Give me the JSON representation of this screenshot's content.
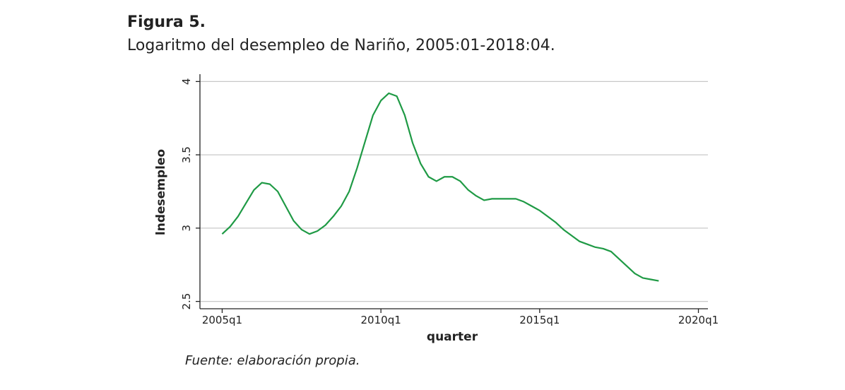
{
  "chart_data": {
    "type": "line",
    "title": "Figura 5.",
    "subtitle": "Logaritmo del desempleo de Nariño, 2005:01-2018:04.",
    "source": "Fuente: elaboración propia.",
    "xlabel": "quarter",
    "ylabel": "lndesempleo",
    "x": [
      2005,
      2005.25,
      2005.5,
      2005.75,
      2006,
      2006.25,
      2006.5,
      2006.75,
      2007,
      2007.25,
      2007.5,
      2007.75,
      2008,
      2008.25,
      2008.5,
      2008.75,
      2009,
      2009.25,
      2009.5,
      2009.75,
      2010,
      2010.25,
      2010.5,
      2010.75,
      2011,
      2011.25,
      2011.5,
      2011.75,
      2012,
      2012.25,
      2012.5,
      2012.75,
      2013,
      2013.25,
      2013.5,
      2013.75,
      2014,
      2014.25,
      2014.5,
      2014.75,
      2015,
      2015.25,
      2015.5,
      2015.75,
      2016,
      2016.25,
      2016.5,
      2016.75,
      2017,
      2017.25,
      2017.5,
      2017.75,
      2018,
      2018.25,
      2018.5,
      2018.75
    ],
    "series": [
      {
        "name": "lndesempleo",
        "color": "#1f9a45",
        "values": [
          2.96,
          3.01,
          3.08,
          3.17,
          3.26,
          3.31,
          3.3,
          3.25,
          3.15,
          3.05,
          2.99,
          2.96,
          2.98,
          3.02,
          3.08,
          3.15,
          3.25,
          3.41,
          3.59,
          3.77,
          3.87,
          3.92,
          3.9,
          3.77,
          3.58,
          3.44,
          3.35,
          3.32,
          3.35,
          3.35,
          3.32,
          3.26,
          3.22,
          3.19,
          3.2,
          3.2,
          3.2,
          3.2,
          3.18,
          3.15,
          3.12,
          3.08,
          3.04,
          2.99,
          2.95,
          2.91,
          2.89,
          2.87,
          2.86,
          2.84,
          2.79,
          2.74,
          2.69,
          2.66,
          2.65,
          2.64
        ]
      }
    ],
    "xlim": [
      2004.3,
      2020.3
    ],
    "xticks": [
      {
        "value": 2005,
        "label": "2005q1"
      },
      {
        "value": 2010,
        "label": "2010q1"
      },
      {
        "value": 2015,
        "label": "2015q1"
      },
      {
        "value": 2020,
        "label": "2020q1"
      }
    ],
    "ylim": [
      2.45,
      4.05
    ],
    "yticks": [
      2.5,
      3,
      3.5,
      4
    ],
    "grid": true
  }
}
